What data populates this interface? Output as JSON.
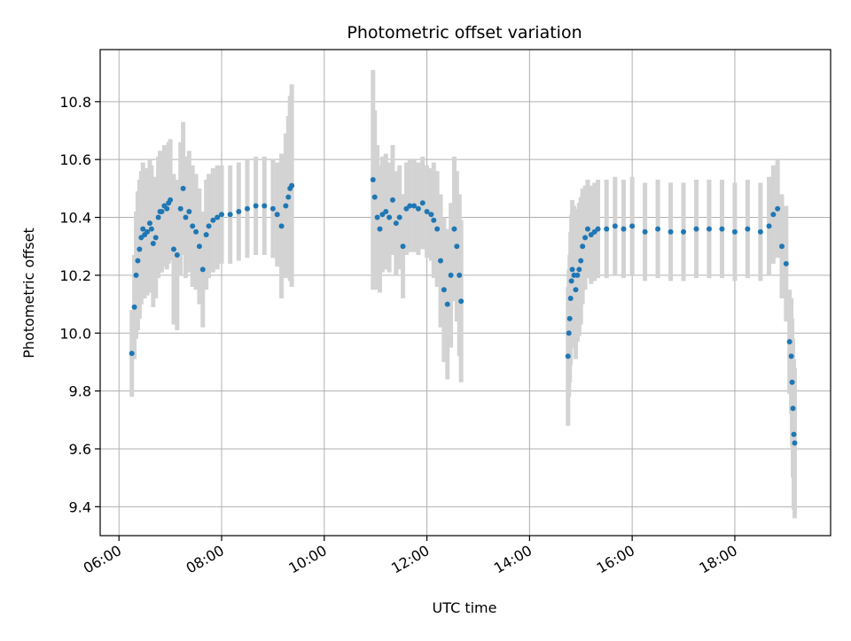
{
  "chart_data": {
    "type": "scatter",
    "title": "Photometric offset variation",
    "xlabel": "UTC time",
    "ylabel": "Photometric offset",
    "x_axis": {
      "kind": "time",
      "ticks": [
        "06:00",
        "08:00",
        "10:00",
        "12:00",
        "14:00",
        "16:00",
        "18:00"
      ],
      "range": [
        "05:38",
        "19:52"
      ]
    },
    "y_axis": {
      "ticks": [
        "9.4",
        "9.6",
        "9.8",
        "10.0",
        "10.2",
        "10.4",
        "10.6",
        "10.8"
      ],
      "range": [
        9.3,
        10.98
      ]
    },
    "grid": true,
    "colors": {
      "points": "#1f77b4",
      "errorbars": "#d3d3d3"
    },
    "series": [
      {
        "x": [
          "06:15",
          "06:18",
          "06:20",
          "06:22",
          "06:24",
          "06:26",
          "06:28",
          "06:30",
          "06:33",
          "06:36",
          "06:38",
          "06:40",
          "06:43",
          "06:46",
          "06:48",
          "06:50",
          "06:53",
          "06:56",
          "06:58",
          "07:00",
          "07:04",
          "07:08",
          "07:12",
          "07:15",
          "07:18",
          "07:22",
          "07:26",
          "07:30",
          "07:34",
          "07:38",
          "07:42",
          "07:45",
          "07:50",
          "07:55",
          "08:00",
          "08:10",
          "08:20",
          "08:30",
          "08:40",
          "08:50",
          "09:00",
          "09:05",
          "09:10",
          "09:15",
          "09:18",
          "09:20",
          "09:22"
        ],
        "y": [
          9.93,
          10.09,
          10.2,
          10.25,
          10.29,
          10.33,
          10.36,
          10.34,
          10.35,
          10.38,
          10.36,
          10.31,
          10.33,
          10.4,
          10.42,
          10.42,
          10.44,
          10.43,
          10.45,
          10.46,
          10.29,
          10.27,
          10.43,
          10.5,
          10.4,
          10.42,
          10.37,
          10.35,
          10.3,
          10.22,
          10.34,
          10.37,
          10.39,
          10.4,
          10.41,
          10.41,
          10.42,
          10.43,
          10.44,
          10.44,
          10.43,
          10.41,
          10.37,
          10.44,
          10.47,
          10.5,
          10.51
        ],
        "err": [
          0.15,
          0.18,
          0.22,
          0.24,
          0.24,
          0.23,
          0.23,
          0.22,
          0.22,
          0.22,
          0.22,
          0.22,
          0.21,
          0.21,
          0.21,
          0.21,
          0.21,
          0.21,
          0.21,
          0.21,
          0.26,
          0.26,
          0.23,
          0.23,
          0.21,
          0.21,
          0.21,
          0.2,
          0.2,
          0.2,
          0.19,
          0.18,
          0.18,
          0.18,
          0.17,
          0.17,
          0.17,
          0.17,
          0.17,
          0.17,
          0.17,
          0.18,
          0.25,
          0.25,
          0.28,
          0.32,
          0.35
        ]
      },
      {
        "x": [
          "10:57",
          "10:59",
          "11:02",
          "11:05",
          "11:08",
          "11:12",
          "11:16",
          "11:20",
          "11:24",
          "11:28",
          "11:32",
          "11:36",
          "11:40",
          "11:45",
          "11:50",
          "11:55",
          "12:00",
          "12:05",
          "12:08",
          "12:12",
          "12:16",
          "12:20",
          "12:24",
          "12:28",
          "12:32",
          "12:35",
          "12:38",
          "12:40"
        ],
        "y": [
          10.53,
          10.47,
          10.4,
          10.36,
          10.41,
          10.42,
          10.4,
          10.46,
          10.38,
          10.4,
          10.3,
          10.43,
          10.44,
          10.44,
          10.43,
          10.45,
          10.42,
          10.41,
          10.39,
          10.36,
          10.25,
          10.15,
          10.1,
          10.2,
          10.36,
          10.3,
          10.2,
          10.11
        ],
        "err": [
          0.38,
          0.3,
          0.25,
          0.22,
          0.2,
          0.2,
          0.19,
          0.19,
          0.18,
          0.18,
          0.18,
          0.16,
          0.16,
          0.16,
          0.16,
          0.16,
          0.16,
          0.16,
          0.2,
          0.2,
          0.23,
          0.25,
          0.26,
          0.25,
          0.25,
          0.26,
          0.28,
          0.28
        ]
      },
      {
        "x": [
          "14:45",
          "14:46",
          "14:47",
          "14:48",
          "14:49",
          "14:50",
          "14:52",
          "14:54",
          "14:56",
          "14:58",
          "15:00",
          "15:02",
          "15:05",
          "15:08",
          "15:12",
          "15:16",
          "15:20",
          "15:30",
          "15:40",
          "15:50",
          "16:00",
          "16:15",
          "16:30",
          "16:45",
          "17:00",
          "17:15",
          "17:30",
          "17:45",
          "18:00",
          "18:15",
          "18:30",
          "18:40",
          "18:45",
          "18:50",
          "18:55",
          "19:00",
          "19:04",
          "19:06",
          "19:07",
          "19:08",
          "19:09",
          "19:10"
        ],
        "y": [
          9.92,
          10.0,
          10.05,
          10.12,
          10.18,
          10.22,
          10.2,
          10.15,
          10.2,
          10.22,
          10.25,
          10.3,
          10.33,
          10.36,
          10.34,
          10.35,
          10.36,
          10.36,
          10.37,
          10.36,
          10.37,
          10.35,
          10.36,
          10.35,
          10.35,
          10.36,
          10.36,
          10.36,
          10.35,
          10.36,
          10.35,
          10.37,
          10.41,
          10.43,
          10.3,
          10.24,
          9.97,
          9.92,
          9.83,
          9.74,
          9.65,
          9.62
        ],
        "err": [
          0.24,
          0.22,
          0.22,
          0.23,
          0.23,
          0.24,
          0.24,
          0.24,
          0.23,
          0.23,
          0.22,
          0.2,
          0.18,
          0.17,
          0.17,
          0.17,
          0.17,
          0.17,
          0.17,
          0.17,
          0.17,
          0.17,
          0.17,
          0.17,
          0.17,
          0.17,
          0.17,
          0.17,
          0.17,
          0.17,
          0.17,
          0.17,
          0.17,
          0.17,
          0.18,
          0.2,
          0.18,
          0.2,
          0.22,
          0.24,
          0.26,
          0.26
        ]
      }
    ]
  }
}
